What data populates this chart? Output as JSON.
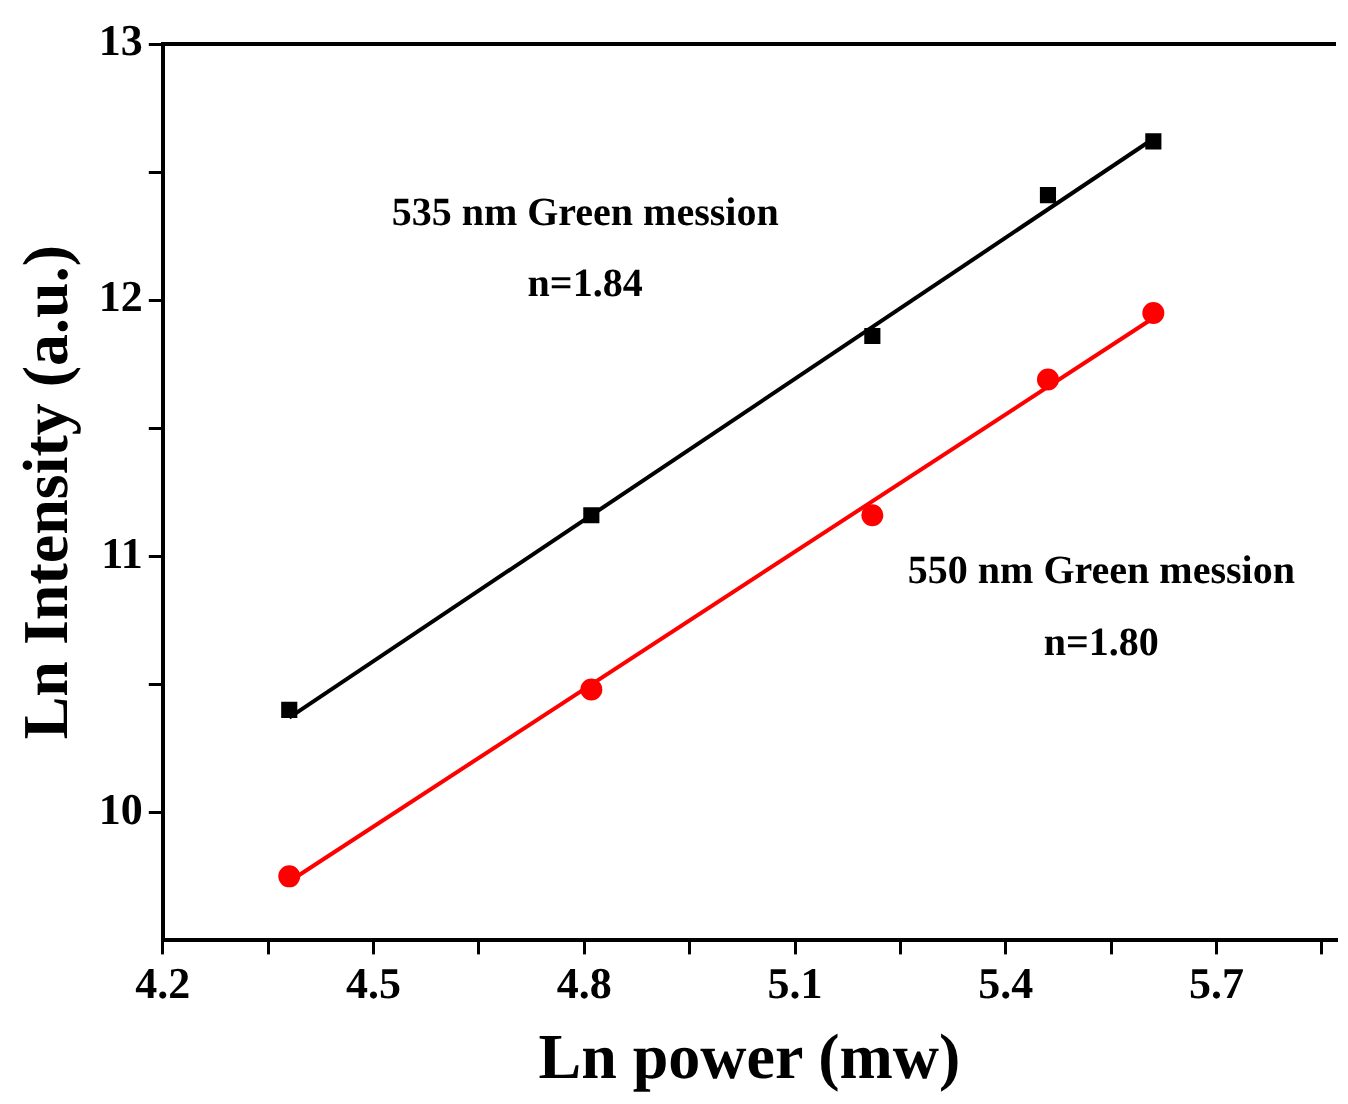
{
  "chart_data": {
    "type": "scatter",
    "xlabel": "Ln power (mw)",
    "ylabel": "Ln Intensity (a.u.)",
    "annotations": [
      "535 nm Green mession",
      "n=1.84",
      "550 nm Green mession",
      "n=1.80"
    ],
    "xlim": [
      4.2,
      5.87
    ],
    "ylim": [
      9.5,
      13
    ],
    "xticks": [
      4.2,
      {
        "value": 4.35,
        "label": null
      },
      4.5,
      {
        "value": 4.65,
        "label": null
      },
      4.8,
      {
        "value": 4.95,
        "label": null
      },
      5.1,
      {
        "value": 5.25,
        "label": null
      },
      5.4,
      {
        "value": 5.55,
        "label": null
      },
      5.7,
      {
        "value": 5.85,
        "label": null
      }
    ],
    "yticks": [
      10,
      {
        "value": 10.5,
        "label": null
      },
      11,
      {
        "value": 11.5,
        "label": null
      },
      12,
      {
        "value": 12.5,
        "label": null
      },
      13
    ],
    "grid": false,
    "legend": false,
    "series": [
      {
        "type": "scatter",
        "marker": "square",
        "color": "#000000",
        "x": [
          4.38,
          4.81,
          5.21,
          5.46,
          5.61
        ],
        "values": [
          10.4,
          11.16,
          11.86,
          12.41,
          12.62
        ]
      },
      {
        "type": "scatter",
        "marker": "circle",
        "color": "#ff0000",
        "x": [
          4.38,
          4.81,
          5.21,
          5.46,
          5.61
        ],
        "values": [
          9.75,
          10.48,
          11.16,
          11.69,
          11.95
        ]
      },
      {
        "type": "line",
        "marker": "none",
        "line_style": "solid",
        "color": "#000000",
        "x": [
          4.38,
          5.61
        ],
        "values": [
          10.37,
          12.63
        ]
      },
      {
        "type": "line",
        "marker": "none",
        "line_style": "solid",
        "color": "#ff0000",
        "x": [
          4.38,
          5.61
        ],
        "values": [
          9.73,
          11.93
        ]
      }
    ]
  }
}
